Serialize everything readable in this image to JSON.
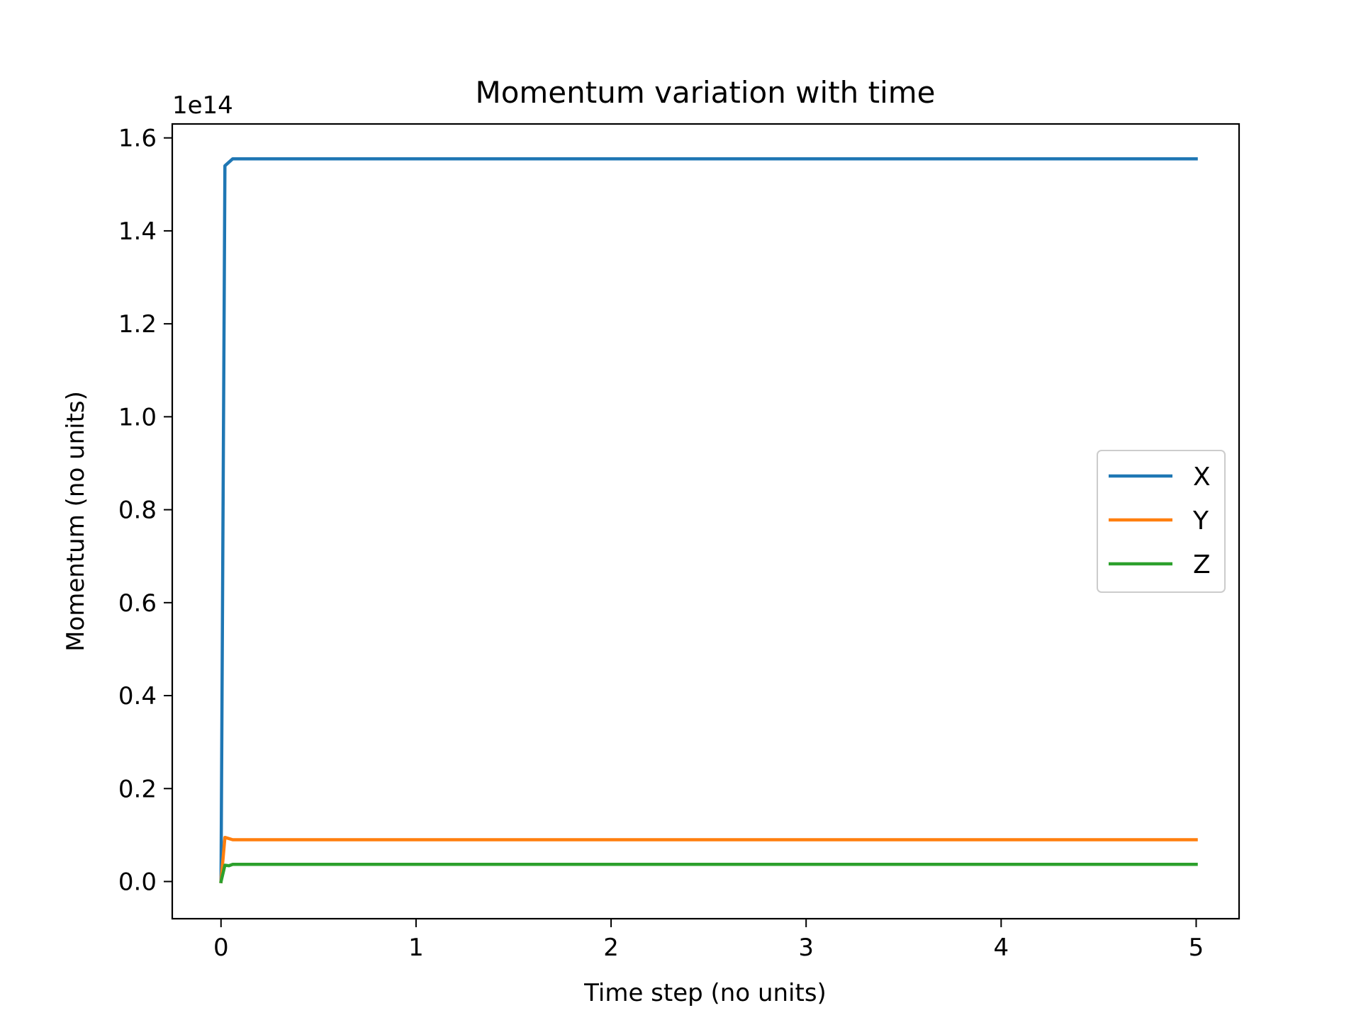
{
  "chart_data": {
    "type": "line",
    "title": "Momentum variation with time",
    "xlabel": "Time step (no units)",
    "ylabel": "Momentum (no units)",
    "y_offset_label": "1e14",
    "xlim": [
      -0.25,
      5.22
    ],
    "ylim": [
      -0.08,
      1.63
    ],
    "x_ticks": [
      0,
      1,
      2,
      3,
      4,
      5
    ],
    "x_tick_labels": [
      "0",
      "1",
      "2",
      "3",
      "4",
      "5"
    ],
    "y_ticks": [
      0.0,
      0.2,
      0.4,
      0.6,
      0.8,
      1.0,
      1.2,
      1.4,
      1.6
    ],
    "y_tick_labels": [
      "0.0",
      "0.2",
      "0.4",
      "0.6",
      "0.8",
      "1.0",
      "1.2",
      "1.4",
      "1.6"
    ],
    "grid": false,
    "legend_position": "center-right",
    "series": [
      {
        "name": "X",
        "color": "#1f77b4",
        "x": [
          0,
          0.02,
          0.06,
          1,
          2,
          3,
          4,
          5
        ],
        "y": [
          0.0,
          1.54,
          1.555,
          1.555,
          1.555,
          1.555,
          1.555,
          1.555
        ]
      },
      {
        "name": "Y",
        "color": "#ff7f0e",
        "x": [
          0,
          0.02,
          0.06,
          1,
          2,
          3,
          4,
          5
        ],
        "y": [
          0.0,
          0.095,
          0.09,
          0.09,
          0.09,
          0.09,
          0.09,
          0.09
        ]
      },
      {
        "name": "Z",
        "color": "#2ca02c",
        "x": [
          0,
          0.02,
          0.04,
          0.06,
          1,
          2,
          3,
          4,
          5
        ],
        "y": [
          0.0,
          0.035,
          0.034,
          0.037,
          0.037,
          0.037,
          0.037,
          0.037,
          0.037
        ]
      }
    ]
  }
}
